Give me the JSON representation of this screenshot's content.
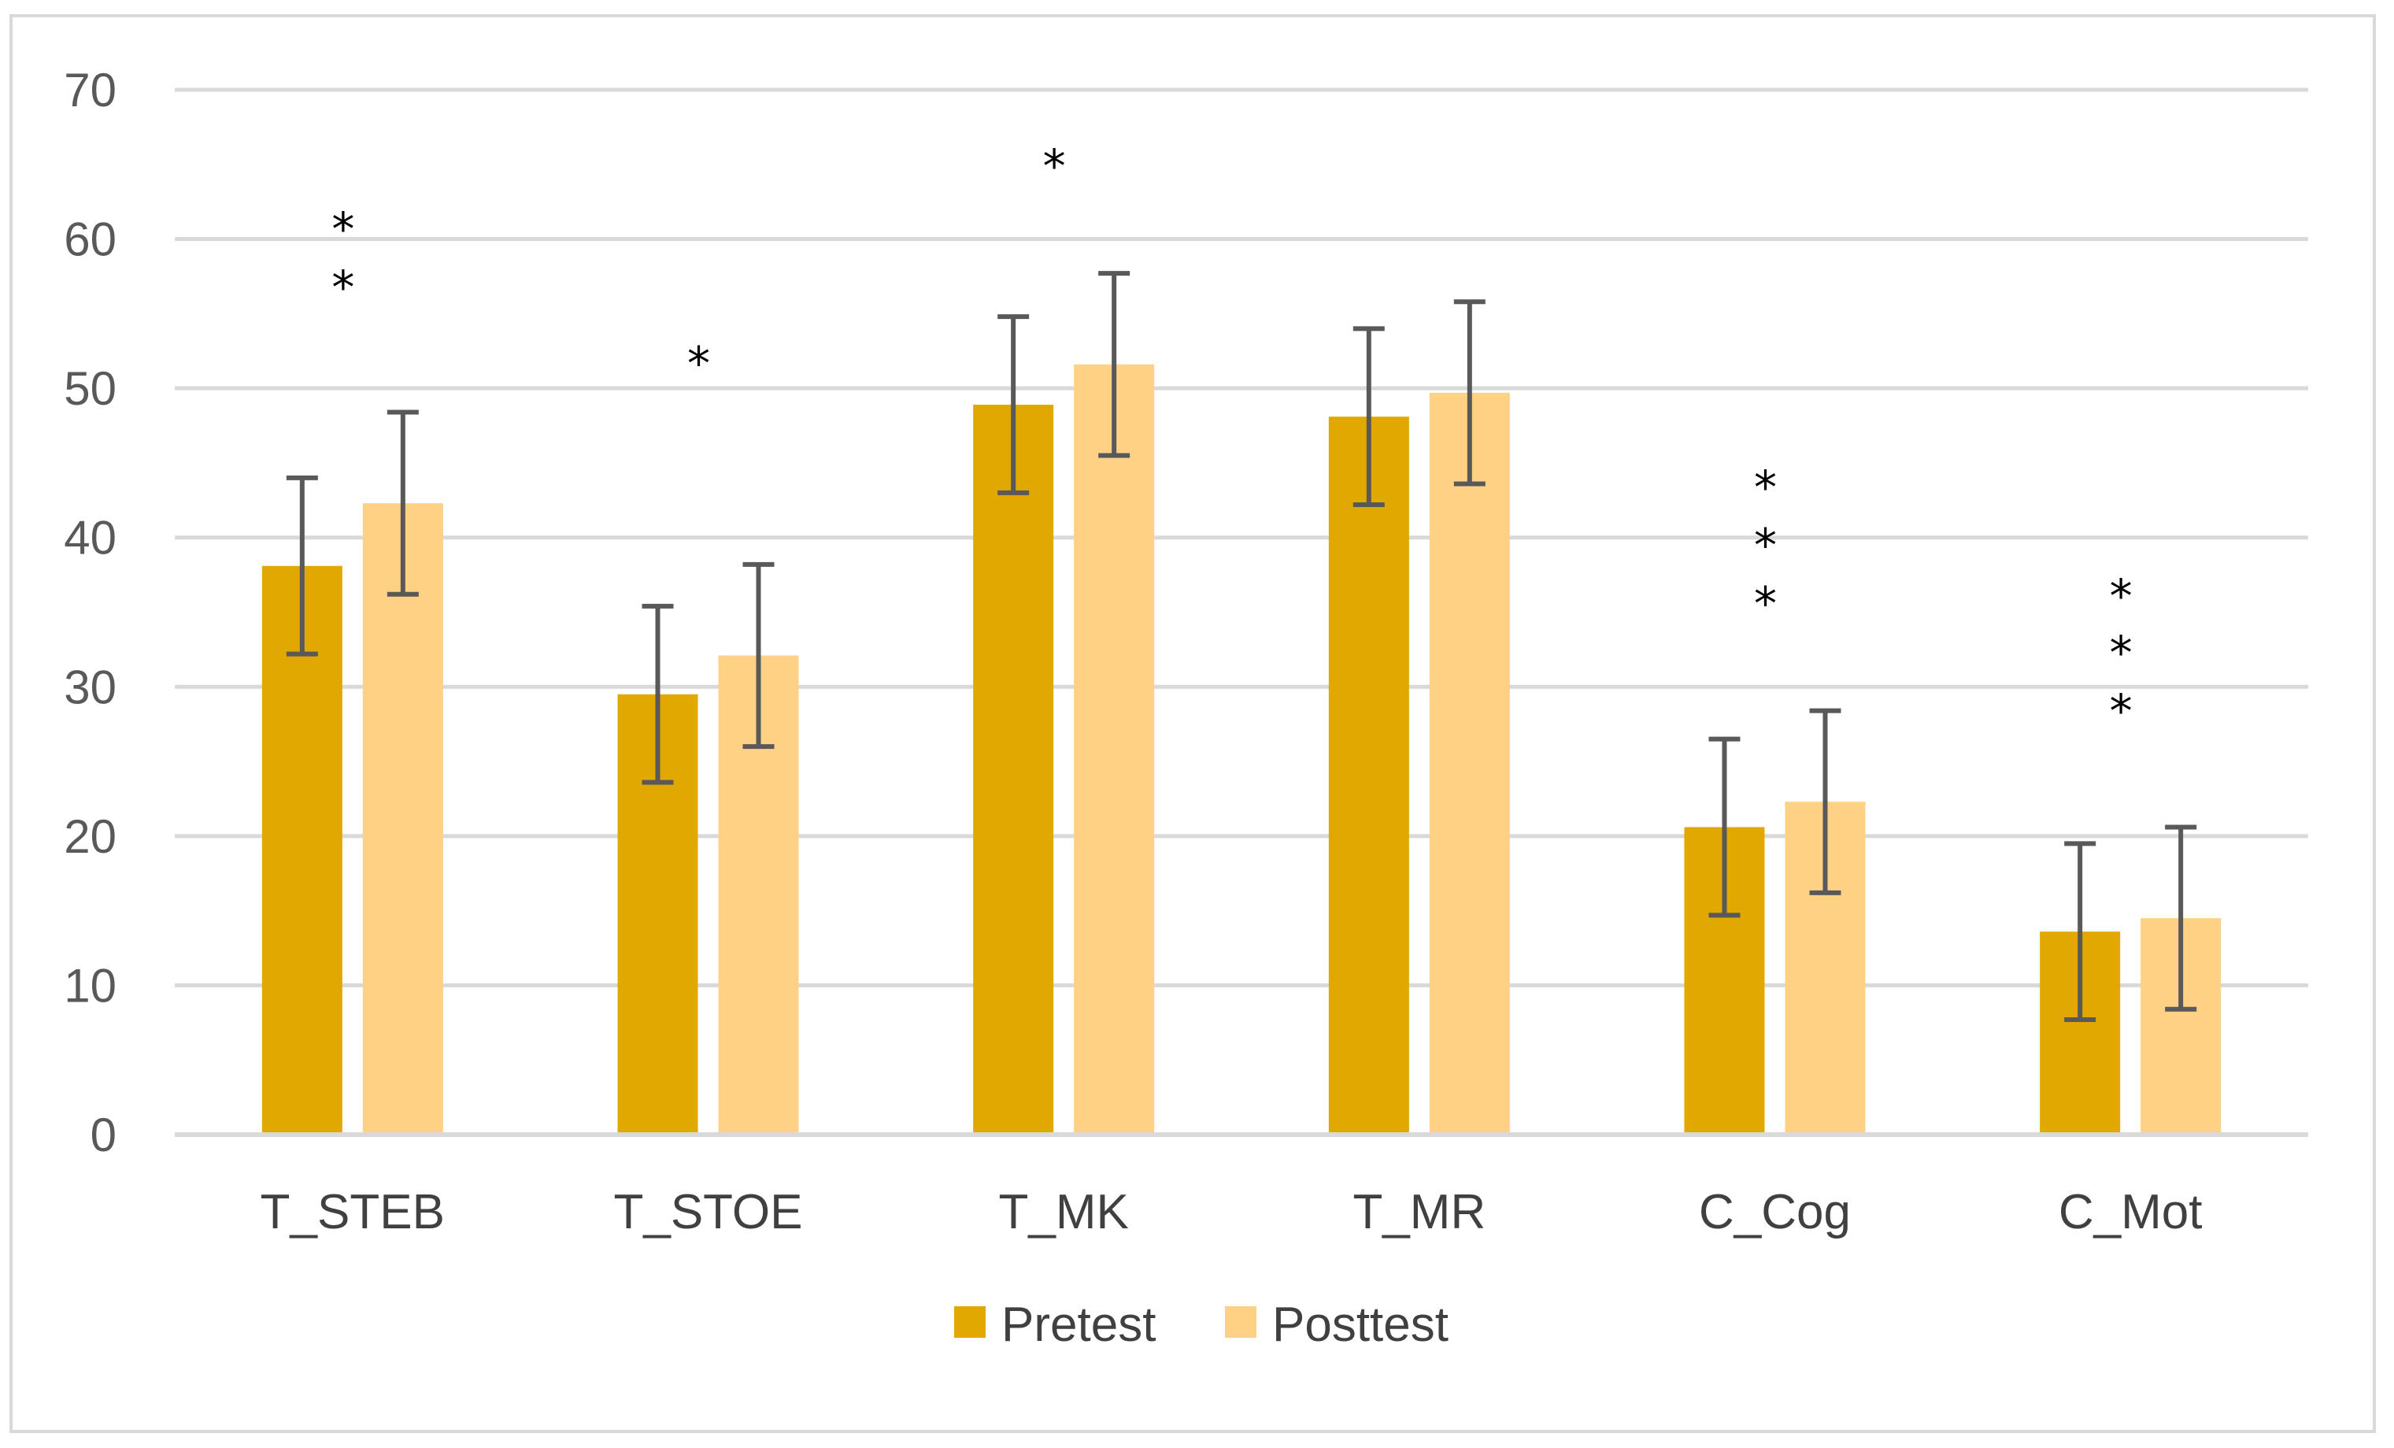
{
  "chart_data": {
    "type": "bar",
    "title": "",
    "xlabel": "",
    "ylabel": "",
    "ylim": [
      0,
      70
    ],
    "yticks": [
      0,
      10,
      20,
      30,
      40,
      50,
      60,
      70
    ],
    "grid": true,
    "legend_position": "bottom-center",
    "categories": [
      "T_STEB",
      "T_STOE",
      "T_MK",
      "T_MR",
      "C_Cog",
      "C_Mot"
    ],
    "series": [
      {
        "name": "Pretest",
        "color": "#e0a800",
        "values": [
          38.1,
          29.5,
          48.9,
          48.1,
          20.6,
          13.6
        ],
        "error_low": [
          32.2,
          23.6,
          43.0,
          42.2,
          14.7,
          7.7
        ],
        "error_high": [
          44.0,
          35.4,
          54.8,
          54.0,
          26.5,
          19.5
        ]
      },
      {
        "name": "Posttest",
        "color": "#ffd185",
        "values": [
          42.3,
          32.1,
          51.6,
          49.7,
          22.3,
          14.5
        ],
        "error_low": [
          36.2,
          26.0,
          45.5,
          43.6,
          16.2,
          8.4
        ],
        "error_high": [
          48.4,
          38.2,
          57.7,
          55.8,
          28.4,
          20.6
        ]
      }
    ],
    "annotations": [
      {
        "category": "T_STEB",
        "stars": [
          "*",
          "*"
        ],
        "y_values": [
          61.2,
          57.3
        ]
      },
      {
        "category": "T_STOE",
        "stars": [
          "*"
        ],
        "y_values": [
          52.2
        ]
      },
      {
        "category": "T_MK",
        "stars": [
          "*"
        ],
        "y_values": [
          65.4
        ]
      },
      {
        "category": "T_MR",
        "stars": [],
        "y_values": []
      },
      {
        "category": "C_Cog",
        "stars": [
          "*",
          "*",
          "*"
        ],
        "y_values": [
          43.9,
          40.0,
          36.1
        ]
      },
      {
        "category": "C_Mot",
        "stars": [
          "*",
          "*",
          "*"
        ],
        "y_values": [
          36.6,
          32.8,
          28.9
        ]
      }
    ],
    "axis_color": "#d9d9d9",
    "grid_color": "#d9d9d9",
    "error_bar_color": "#595959"
  }
}
